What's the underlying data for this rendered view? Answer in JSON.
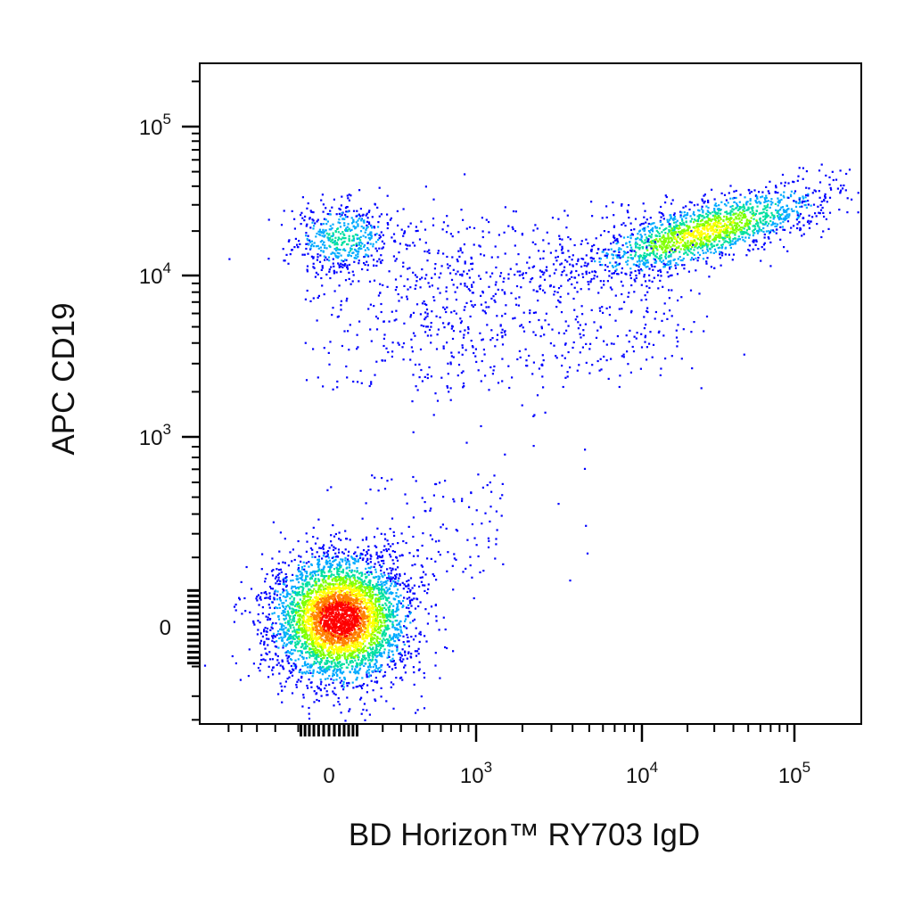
{
  "chart_data": {
    "type": "scatter",
    "subtype": "flow-cytometry-pseudocolor-density",
    "xlabel": "BD Horizon™ RY703  IgD",
    "ylabel": "APC  CD19",
    "x_scale": "biexponential",
    "y_scale": "biexponential",
    "xlim": [
      -600,
      150000
    ],
    "ylim": [
      -500,
      200000
    ],
    "x_tick_labels": [
      {
        "value": 0,
        "base": "0",
        "exp": ""
      },
      {
        "value": 1000,
        "base": "10",
        "exp": "3"
      },
      {
        "value": 10000,
        "base": "10",
        "exp": "4"
      },
      {
        "value": 100000,
        "base": "10",
        "exp": "5"
      }
    ],
    "y_tick_labels": [
      {
        "value": 0,
        "base": "0",
        "exp": ""
      },
      {
        "value": 1000,
        "base": "10",
        "exp": "3"
      },
      {
        "value": 10000,
        "base": "10",
        "exp": "4"
      },
      {
        "value": 100000,
        "base": "10",
        "exp": "5"
      }
    ],
    "color_scale": [
      "#0000ff",
      "#00aaff",
      "#00e0a0",
      "#80ff00",
      "#ffff00",
      "#ff8000",
      "#ff0000"
    ],
    "populations": [
      {
        "center_x": 30,
        "center_y": 20,
        "approx_events": 9000,
        "peak_density": "high"
      },
      {
        "center_x": 25000,
        "center_y": 20000,
        "approx_events": 3200,
        "peak_density": "medium"
      },
      {
        "center_x": 40,
        "center_y": 18000,
        "approx_events": 900,
        "peak_density": "low"
      },
      {
        "center_x": 3000,
        "center_y": 8000,
        "approx_events": 1100,
        "peak_density": "sparse"
      }
    ],
    "grid": false,
    "legend": "none"
  }
}
